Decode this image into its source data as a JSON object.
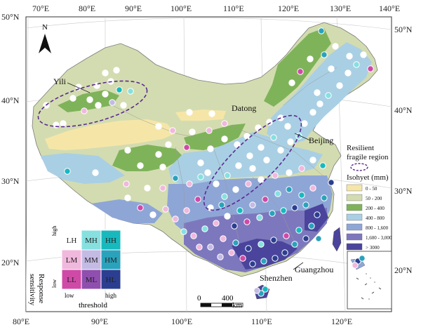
{
  "map": {
    "lat_left": [
      "50°N",
      "40°N",
      "30°N",
      "20°N"
    ],
    "lat_right": [
      "50°N",
      "40°N",
      "30°N",
      "20°N"
    ],
    "lon_top": [
      "70°E",
      "80°E",
      "90°E",
      "100°E",
      "110°E",
      "120°E",
      "130°E",
      "140°E"
    ],
    "lon_bottom": [
      "80°E",
      "90°E",
      "100°E",
      "110°E",
      "120°E"
    ],
    "north_arrow_label": "N",
    "scalebar": {
      "zero": "0",
      "mid": "400",
      "unit": "km"
    }
  },
  "places": {
    "yili": "Yili",
    "datong": "Datong",
    "beijing": "Beijing",
    "guangzhou": "Guangzhou",
    "shenzhen": "Shenzhen"
  },
  "legend": {
    "resilient_line1": "Resilient",
    "resilient_line2": "fragile region",
    "isohyet_title": "Isohyet (mm)",
    "classes": [
      {
        "label": "0 - 50",
        "color": "#f5e6a8"
      },
      {
        "label": "50 - 200",
        "color": "#d3dcb0"
      },
      {
        "label": "200 - 400",
        "color": "#7fb35a"
      },
      {
        "label": "400 - 800",
        "color": "#a9cfe4"
      },
      {
        "label": "800 - 1,600",
        "color": "#8ea6d6"
      },
      {
        "label": "1,600 - 3,000",
        "color": "#7d78bd"
      },
      {
        "label": "> 3000",
        "color": "#4a449c"
      }
    ]
  },
  "matrix": {
    "y_title_1": "Response",
    "y_title_2": "sensitivity",
    "y_high": "high",
    "y_low": "low",
    "x_low": "low",
    "x_high": "high",
    "x_title": "threshold",
    "rows": [
      [
        {
          "code": "LH",
          "color": "#ffffff"
        },
        {
          "code": "MH",
          "color": "#86e0e0"
        },
        {
          "code": "HH",
          "color": "#17b9bd"
        }
      ],
      [
        {
          "code": "LM",
          "color": "#f0b8dc"
        },
        {
          "code": "MM",
          "color": "#c4bbe4"
        },
        {
          "code": "HM",
          "color": "#2aa2bc"
        }
      ],
      [
        {
          "code": "LL",
          "color": "#cf4aa7"
        },
        {
          "code": "ML",
          "color": "#8f4fae"
        },
        {
          "code": "HL",
          "color": "#2b3e90"
        }
      ]
    ]
  }
}
